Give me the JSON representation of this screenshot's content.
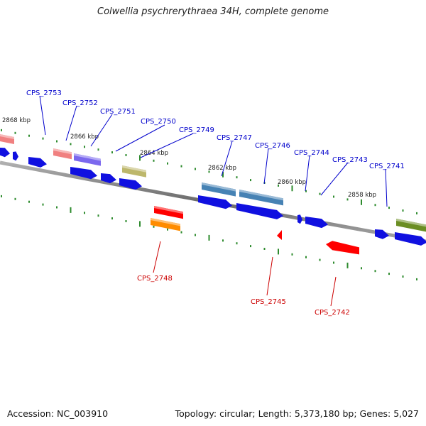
{
  "title": "Colwellia psychrerythraea 34H, complete genome",
  "footer": {
    "accession": "Accession: NC_003910",
    "topology": "Topology: circular; Length: 5,373,180 bp; Genes: 5,027"
  },
  "colors": {
    "backbone": "#7a7a7a",
    "tick": "#2e8b2e",
    "forward_label": "#0000cc",
    "reverse_label": "#cc0000",
    "cds": "#1010e0"
  },
  "scale_labels": [
    "2868 kbp",
    "2866 kbp",
    "2864 kbp",
    "2862 kbp",
    "2860 kbp",
    "2858 kbp"
  ],
  "forward_genes": [
    {
      "name": "CPS_2753",
      "color": "#f08080"
    },
    {
      "name": "CPS_2752",
      "color": "#f08080"
    },
    {
      "name": "CPS_2751",
      "color": "#7b68ee"
    },
    {
      "name": "CPS_2750",
      "color": "#bdb76b"
    },
    {
      "name": "CPS_2749",
      "color": ""
    },
    {
      "name": "CPS_2747",
      "color": "#4682b4"
    },
    {
      "name": "CPS_2746",
      "color": "#4682b4"
    },
    {
      "name": "CPS_2744",
      "color": ""
    },
    {
      "name": "CPS_2743",
      "color": ""
    },
    {
      "name": "CPS_2741",
      "color": "#6b8e23"
    }
  ],
  "reverse_genes": [
    {
      "name": "CPS_2748",
      "color": "#ff8c00"
    },
    {
      "name": "CPS_2745",
      "color": "#ff0000"
    },
    {
      "name": "CPS_2742",
      "color": "#ff0000"
    }
  ]
}
